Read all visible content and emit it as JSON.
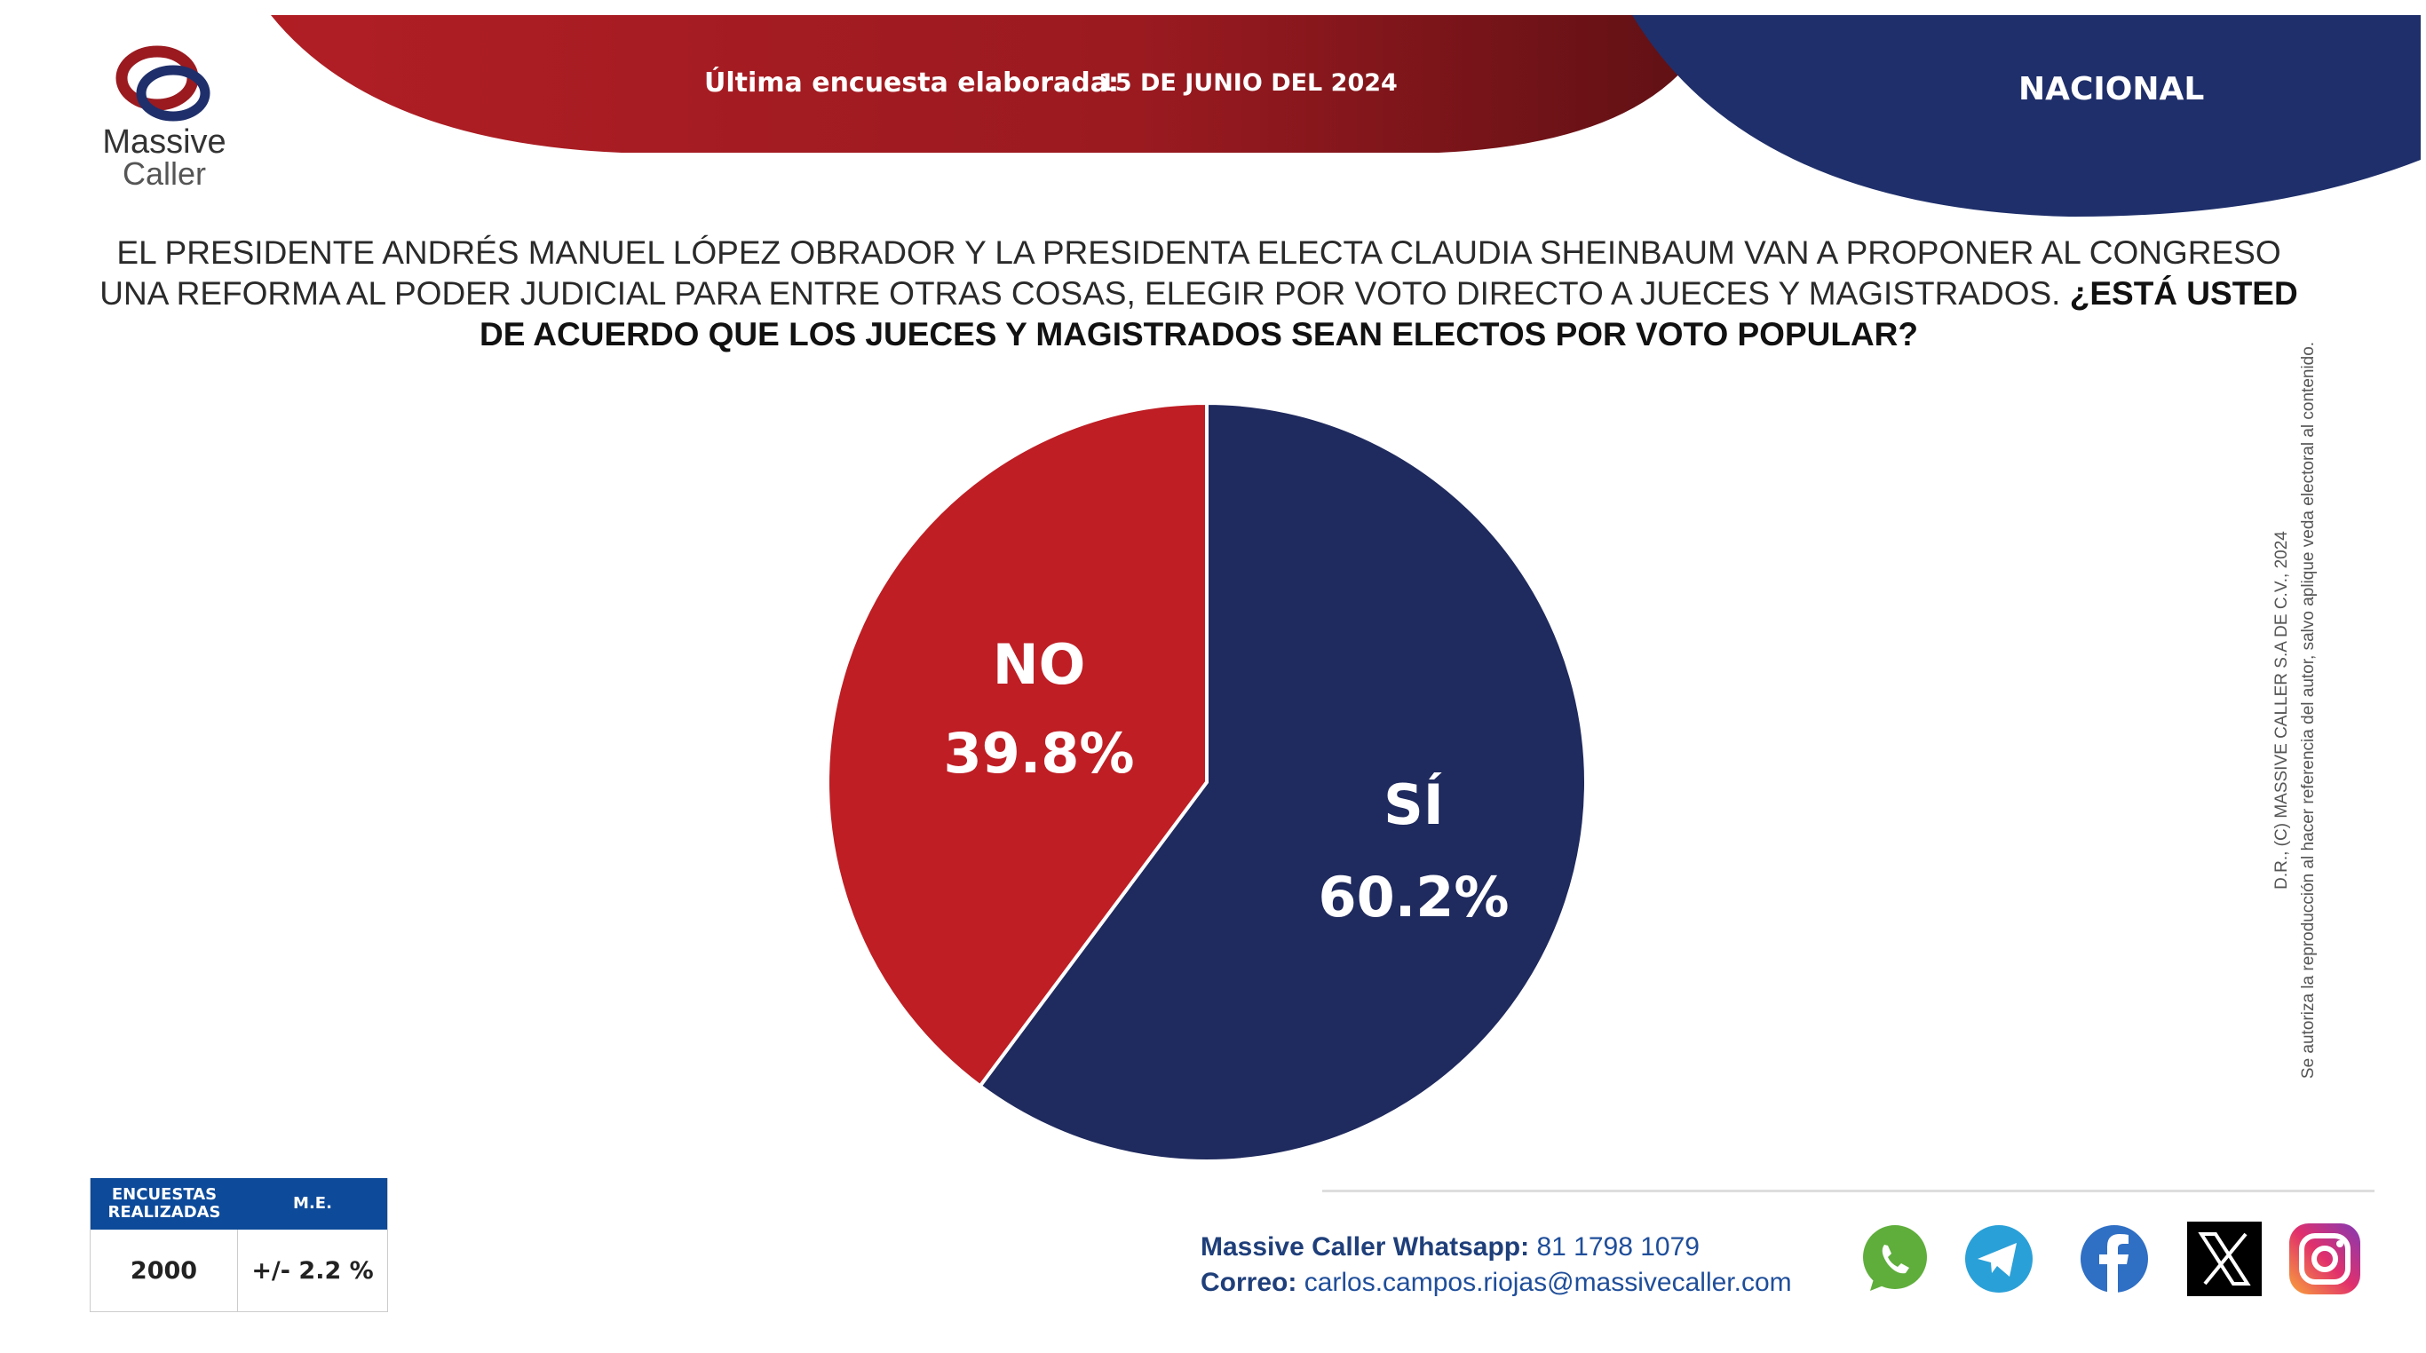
{
  "brand": {
    "name_line1": "Massive",
    "name_line2": "Caller"
  },
  "header": {
    "survey_label": "Última encuesta elaborada:",
    "survey_date": "15 DE JUNIO DEL 2024",
    "scope": "NACIONAL",
    "colors": {
      "red": "#a01c22",
      "blue": "#1f2f6b"
    }
  },
  "question": {
    "regular": "EL PRESIDENTE ANDRÉS MANUEL LÓPEZ OBRADOR Y  LA PRESIDENTA ELECTA CLAUDIA SHEINBAUM VAN A PROPONER AL CONGRESO UNA REFORMA AL PODER JUDICIAL PARA ENTRE OTRAS COSAS, ELEGIR POR VOTO DIRECTO A JUECES Y MAGISTRADOS.",
    "bold": "¿ESTÁ USTED DE ACUERDO QUE LOS JUECES Y MAGISTRADOS SEAN ELECTOS POR VOTO POPULAR?"
  },
  "chart_data": {
    "type": "pie",
    "title": "",
    "slices": [
      {
        "label": "SÍ",
        "value": 60.2,
        "value_label": "60.2%",
        "color": "#1f2a5e"
      },
      {
        "label": "NO",
        "value": 39.8,
        "value_label": "39.8%",
        "color": "#be1e24"
      }
    ]
  },
  "stats": {
    "headers": [
      "ENCUESTAS REALIZADAS",
      "M.E."
    ],
    "values": [
      "2000",
      "+/- 2.2 %"
    ]
  },
  "contact": {
    "whatsapp_label": "Massive Caller Whatsapp:",
    "whatsapp_number": "81 1798 1079",
    "email_label": "Correo:",
    "email": "carlos.campos.riojas@massivecaller.com"
  },
  "social_icons": [
    "whatsapp-icon",
    "telegram-icon",
    "facebook-icon",
    "x-icon",
    "instagram-icon"
  ],
  "legal": {
    "line1": "D.R., (C) MASSIVE CALLER S.A DE C.V., 2024",
    "line2": "Se autoriza la reproducción al hacer referencia del autor, salvo aplique veda electoral al contenido."
  }
}
